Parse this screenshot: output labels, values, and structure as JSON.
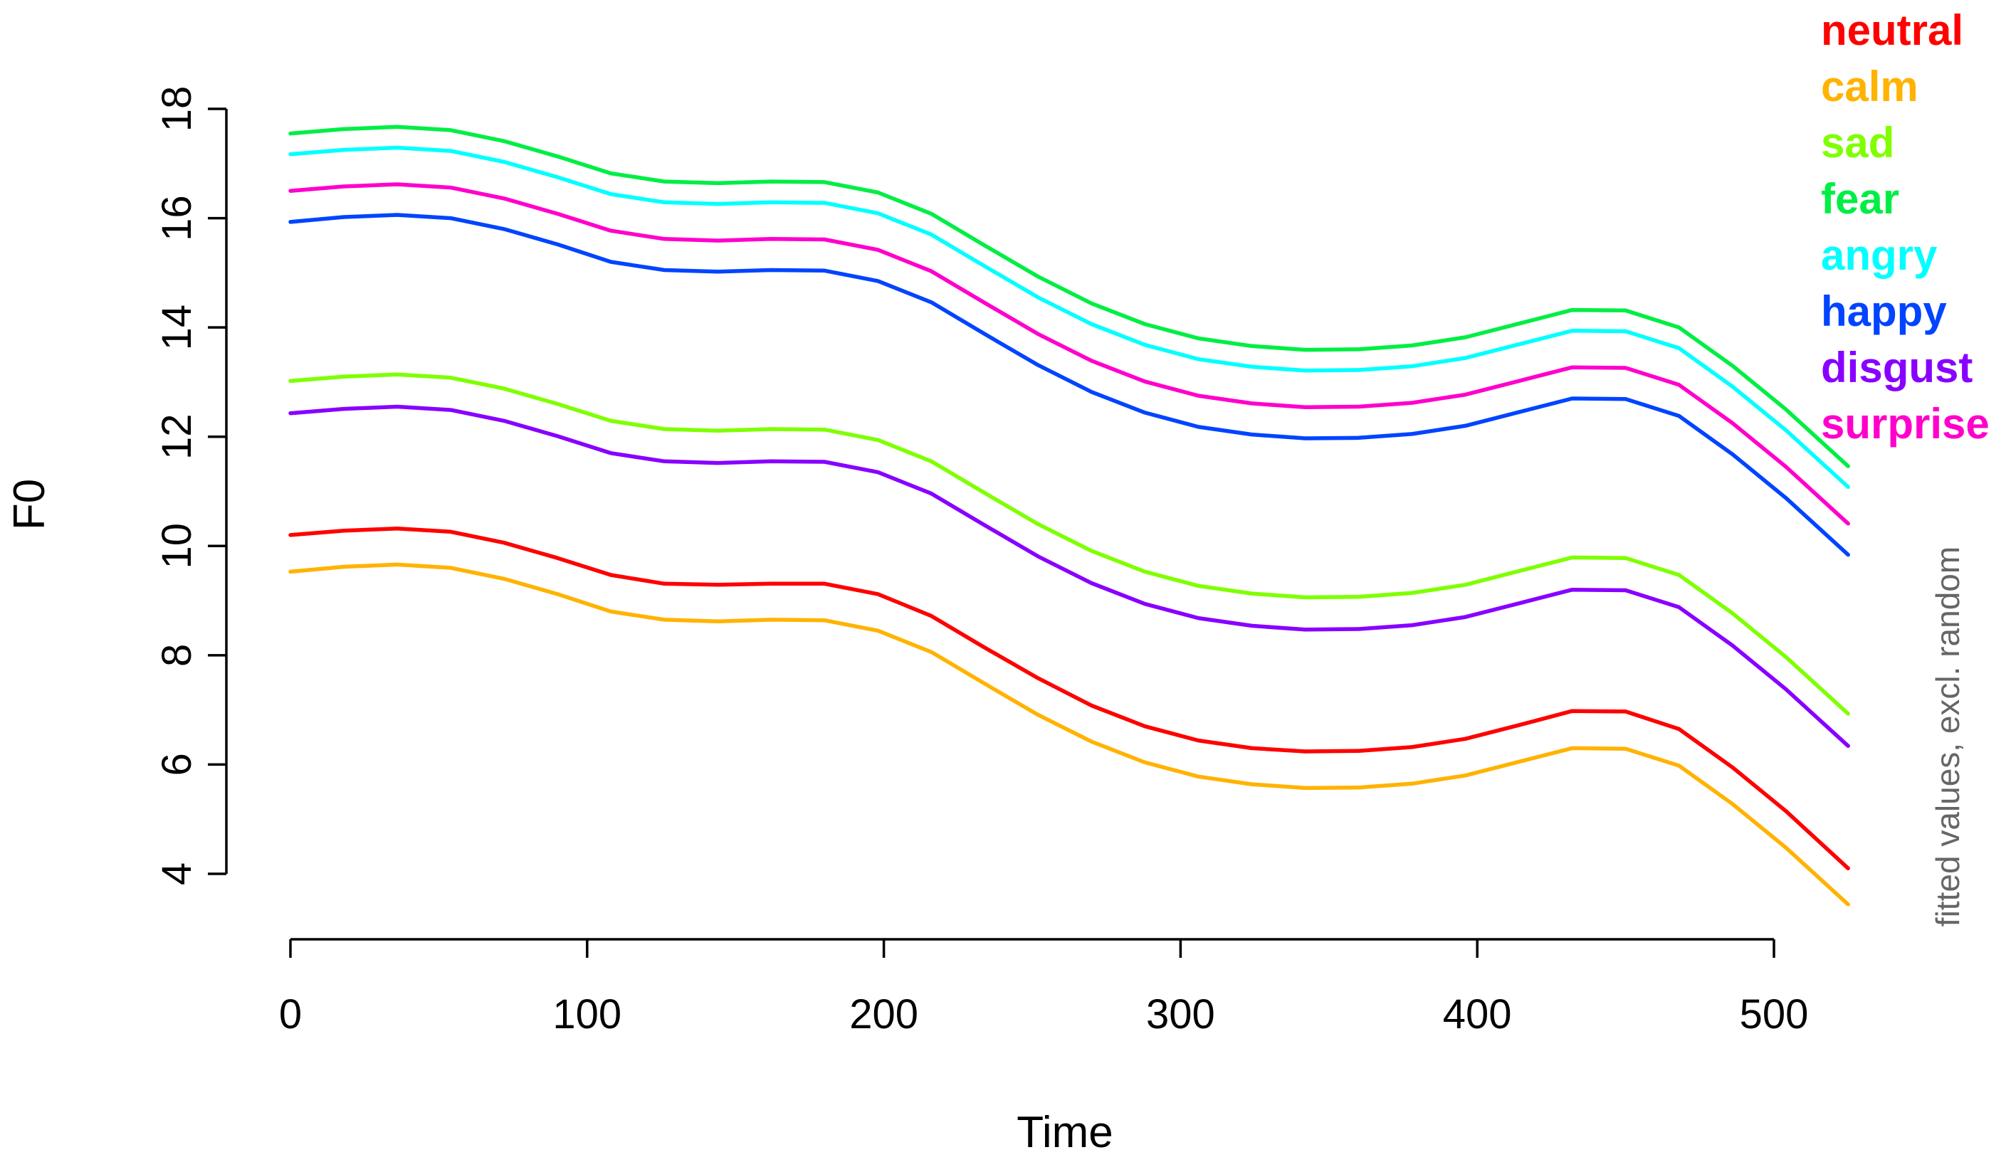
{
  "chart_data": {
    "type": "line",
    "title": "",
    "xlabel": "Time",
    "ylabel": "F0",
    "side_note": "fitted values, excl. random",
    "xlim": [
      0,
      525
    ],
    "ylim": [
      4,
      18
    ],
    "x_ticks": [
      0,
      100,
      200,
      300,
      400,
      500
    ],
    "y_ticks": [
      4,
      6,
      8,
      10,
      12,
      14,
      16,
      18
    ],
    "grid": false,
    "legend_position": "top-right",
    "x": [
      0,
      18,
      36,
      54,
      72,
      90,
      108,
      126,
      144,
      162,
      180,
      198,
      216,
      234,
      252,
      270,
      288,
      306,
      324,
      342,
      360,
      378,
      396,
      414,
      432,
      450,
      468,
      486,
      504,
      525
    ],
    "series": [
      {
        "name": "neutral",
        "color": "#ff0000",
        "values": [
          10.2,
          10.28,
          10.32,
          10.26,
          10.06,
          9.78,
          9.47,
          9.31,
          9.29,
          9.31,
          9.31,
          9.12,
          8.72,
          8.14,
          7.58,
          7.08,
          6.7,
          6.44,
          6.3,
          6.24,
          6.25,
          6.32,
          6.47,
          6.72,
          6.98,
          6.97,
          6.65,
          5.95,
          5.15,
          4.1
        ]
      },
      {
        "name": "calm",
        "color": "#ffb300",
        "values": [
          9.53,
          9.62,
          9.66,
          9.6,
          9.4,
          9.12,
          8.8,
          8.65,
          8.62,
          8.65,
          8.64,
          8.45,
          8.06,
          7.48,
          6.91,
          6.42,
          6.04,
          5.78,
          5.64,
          5.57,
          5.58,
          5.65,
          5.8,
          6.05,
          6.3,
          6.29,
          5.98,
          5.28,
          4.48,
          3.44
        ]
      },
      {
        "name": "sad",
        "color": "#7fff00",
        "values": [
          13.02,
          13.1,
          13.14,
          13.08,
          12.88,
          12.6,
          12.29,
          12.14,
          12.11,
          12.14,
          12.13,
          11.94,
          11.55,
          10.97,
          10.4,
          9.91,
          9.53,
          9.27,
          9.13,
          9.06,
          9.07,
          9.14,
          9.29,
          9.54,
          9.79,
          9.78,
          9.47,
          8.77,
          7.97,
          6.93
        ]
      },
      {
        "name": "fear",
        "color": "#00ee44",
        "values": [
          17.55,
          17.63,
          17.67,
          17.61,
          17.41,
          17.13,
          16.82,
          16.67,
          16.64,
          16.67,
          16.66,
          16.47,
          16.08,
          15.5,
          14.93,
          14.44,
          14.06,
          13.8,
          13.66,
          13.59,
          13.6,
          13.67,
          13.82,
          14.07,
          14.32,
          14.31,
          14.0,
          13.3,
          12.5,
          11.46
        ]
      },
      {
        "name": "angry",
        "color": "#00ffff",
        "values": [
          17.17,
          17.25,
          17.29,
          17.23,
          17.03,
          16.75,
          16.44,
          16.29,
          16.26,
          16.29,
          16.28,
          16.09,
          15.7,
          15.12,
          14.55,
          14.06,
          13.68,
          13.42,
          13.28,
          13.21,
          13.22,
          13.29,
          13.44,
          13.69,
          13.94,
          13.93,
          13.62,
          12.92,
          12.12,
          11.08
        ]
      },
      {
        "name": "happy",
        "color": "#0044ff",
        "values": [
          15.93,
          16.02,
          16.06,
          16.0,
          15.8,
          15.52,
          15.2,
          15.05,
          15.02,
          15.05,
          15.04,
          14.85,
          14.46,
          13.88,
          13.31,
          12.82,
          12.44,
          12.18,
          12.04,
          11.97,
          11.98,
          12.05,
          12.2,
          12.45,
          12.7,
          12.69,
          12.38,
          11.68,
          10.88,
          9.84
        ]
      },
      {
        "name": "disgust",
        "color": "#8800ff",
        "values": [
          12.43,
          12.51,
          12.55,
          12.49,
          12.29,
          12.01,
          11.7,
          11.55,
          11.52,
          11.55,
          11.54,
          11.35,
          10.96,
          10.38,
          9.81,
          9.32,
          8.94,
          8.68,
          8.54,
          8.47,
          8.48,
          8.55,
          8.7,
          8.95,
          9.2,
          9.19,
          8.88,
          8.18,
          7.38,
          6.34
        ]
      },
      {
        "name": "surprise",
        "color": "#ff00cc",
        "values": [
          16.5,
          16.58,
          16.62,
          16.56,
          16.36,
          16.08,
          15.77,
          15.62,
          15.59,
          15.62,
          15.61,
          15.42,
          15.03,
          14.45,
          13.88,
          13.39,
          13.01,
          12.75,
          12.61,
          12.54,
          12.55,
          12.62,
          12.77,
          13.02,
          13.27,
          13.26,
          12.95,
          12.25,
          11.45,
          10.41
        ]
      }
    ]
  }
}
